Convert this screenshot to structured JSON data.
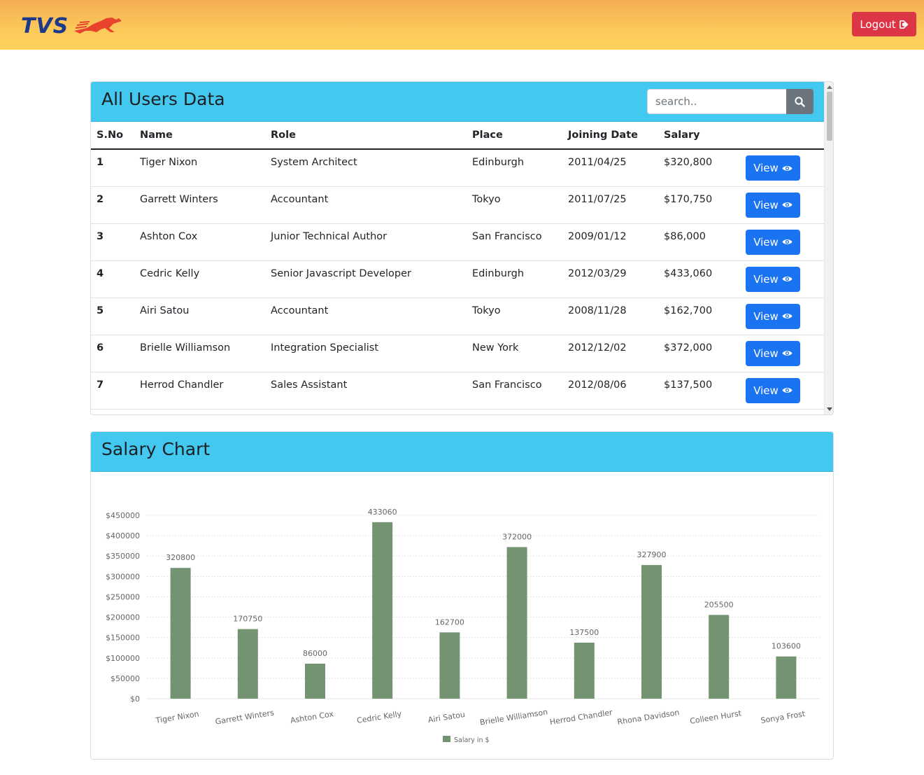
{
  "navbar": {
    "logo_text": "TVS",
    "logout_label": "Logout",
    "brand_color": "#1d3a8a",
    "logout_color": "#dc3545"
  },
  "users_card": {
    "title": "All Users Data",
    "search": {
      "placeholder": "search..",
      "value": ""
    },
    "columns": [
      "S.No",
      "Name",
      "Role",
      "Place",
      "Joining Date",
      "Salary"
    ],
    "view_label": "View",
    "rows": [
      {
        "sno": "1",
        "name": "Tiger Nixon",
        "role": "System Architect",
        "place": "Edinburgh",
        "date": "2011/04/25",
        "salary": "$320,800"
      },
      {
        "sno": "2",
        "name": "Garrett Winters",
        "role": "Accountant",
        "place": "Tokyo",
        "date": "2011/07/25",
        "salary": "$170,750"
      },
      {
        "sno": "3",
        "name": "Ashton Cox",
        "role": "Junior Technical Author",
        "place": "San Francisco",
        "date": "2009/01/12",
        "salary": "$86,000"
      },
      {
        "sno": "4",
        "name": "Cedric Kelly",
        "role": "Senior Javascript Developer",
        "place": "Edinburgh",
        "date": "2012/03/29",
        "salary": "$433,060"
      },
      {
        "sno": "5",
        "name": "Airi Satou",
        "role": "Accountant",
        "place": "Tokyo",
        "date": "2008/11/28",
        "salary": "$162,700"
      },
      {
        "sno": "6",
        "name": "Brielle Williamson",
        "role": "Integration Specialist",
        "place": "New York",
        "date": "2012/12/02",
        "salary": "$372,000"
      },
      {
        "sno": "7",
        "name": "Herrod Chandler",
        "role": "Sales Assistant",
        "place": "San Francisco",
        "date": "2012/08/06",
        "salary": "$137,500"
      }
    ]
  },
  "chart_card": {
    "title": "Salary Chart"
  },
  "chart_data": {
    "type": "bar",
    "title": "",
    "xlabel": "",
    "ylabel": "",
    "categories": [
      "Tiger Nixon",
      "Garrett Winters",
      "Ashton Cox",
      "Cedric Kelly",
      "Airi Satou",
      "Brielle Williamson",
      "Herrod Chandler",
      "Rhona Davidson",
      "Colleen Hurst",
      "Sonya Frost"
    ],
    "series": [
      {
        "name": "Salary in $",
        "values": [
          320800,
          170750,
          86000,
          433060,
          162700,
          372000,
          137500,
          327900,
          205500,
          103600
        ],
        "color": "#739373"
      }
    ],
    "ylim": [
      0,
      450000
    ],
    "yticks": [
      "$0",
      "$50000",
      "$100000",
      "$150000",
      "$200000",
      "$250000",
      "$300000",
      "$350000",
      "$400000",
      "$450000"
    ],
    "grid": true,
    "data_labels": true,
    "legend_position": "bottom"
  }
}
